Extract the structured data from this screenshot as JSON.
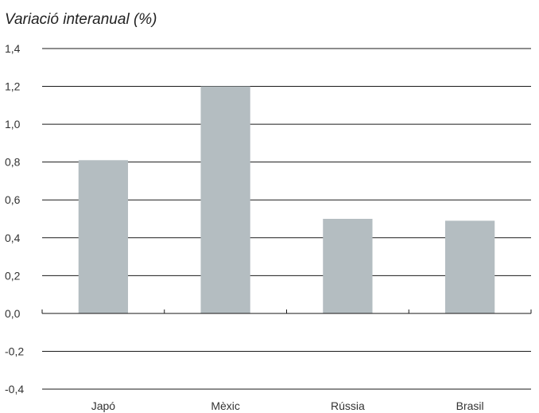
{
  "chart_data": {
    "type": "bar",
    "title": "",
    "subtitle": "Variació interanual (%)",
    "xlabel": "",
    "ylabel": "",
    "categories": [
      "Japó",
      "Mèxic",
      "Rússia",
      "Brasil"
    ],
    "values": [
      0.81,
      1.2,
      0.5,
      0.49
    ],
    "ylim": [
      -0.4,
      1.4
    ],
    "yticks": [
      1.4,
      1.2,
      1.0,
      0.8,
      0.6,
      0.4,
      0.2,
      0.0,
      -0.2,
      -0.4
    ],
    "ytick_labels": [
      "1,4",
      "1,2",
      "1,0",
      "0,8",
      "0,6",
      "0,4",
      "0,2",
      "0,0",
      "-0,2",
      "-0,4"
    ],
    "grid": true,
    "legend": "none",
    "colors": {
      "bar": "#b4bdc1",
      "grid": "#1a1a1a",
      "text": "#333333"
    }
  }
}
